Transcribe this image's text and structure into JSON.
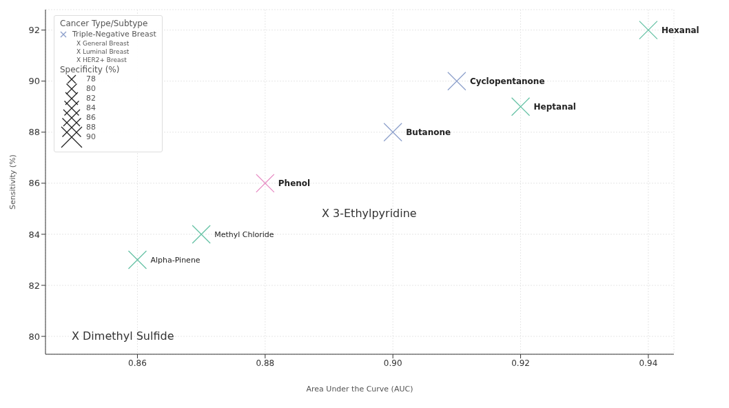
{
  "chart_data": {
    "type": "scatter",
    "xlabel": "Area Under the Curve (AUC)",
    "ylabel": "Sensitivity (%)",
    "legend_title": "Cancer Type/Subtype",
    "marker": "cross",
    "grid": true,
    "legend": "top left",
    "xlim": [
      0.8456,
      0.944
    ],
    "xticks": [
      0.86,
      0.88,
      {
        "value": 0.9,
        "label": "0.90"
      },
      0.92,
      0.94
    ],
    "ylim": [
      79.3,
      92.8
    ],
    "yticks": [
      80,
      82,
      84,
      86,
      88,
      90,
      92
    ],
    "series": [
      {
        "color": "#66c2a5",
        "x": [
          0.94,
          0.92,
          0.87,
          0.86
        ],
        "values": [
          92,
          89,
          84,
          83
        ]
      },
      {
        "name": "Triple-Negative Breast",
        "color": "#8da0cb",
        "x": [
          0.91,
          0.9
        ],
        "values": [
          90,
          88
        ]
      },
      {
        "color": "#e78ac3",
        "x": [
          0.88
        ],
        "values": [
          86
        ]
      }
    ],
    "annotations": [
      {
        "text": "Hexanal",
        "x": 0.94,
        "y": 92
      },
      {
        "text": "Heptanal",
        "x": 0.92,
        "y": 89
      },
      {
        "text": "Methyl Chloride",
        "x": 0.87,
        "y": 84
      },
      {
        "text": "Alpha-Pinene",
        "x": 0.86,
        "y": 83
      },
      {
        "text": "Cyclopentanone",
        "x": 0.91,
        "y": 90
      },
      {
        "text": "Butanone",
        "x": 0.9,
        "y": 88
      },
      {
        "text": "Phenol",
        "x": 0.88,
        "y": 86
      },
      "X 3-Ethylpyridine",
      "X Dimethyl Sulfide",
      "X General Breast",
      "X Luminal Breast",
      "X HER2+ Breast",
      "Specificity (%)",
      "78",
      "80",
      "82",
      "84",
      "86",
      "88",
      "90"
    ]
  }
}
